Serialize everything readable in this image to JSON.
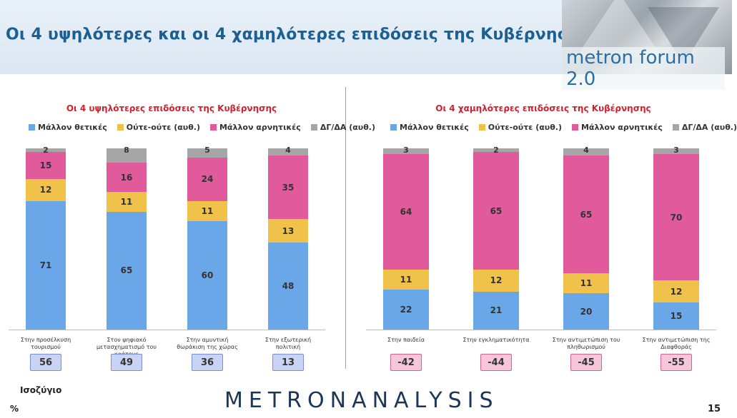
{
  "header": {
    "title": "Οι 4 υψηλότερες και οι 4 χαμηλότερες επιδόσεις της Κυβέρνησης",
    "logo": "metron forum 2.0"
  },
  "colors": {
    "positive": "#6aa7e8",
    "neutral": "#f0c24a",
    "negative": "#e05a9c",
    "dk": "#a6a6a6"
  },
  "footer": {
    "balance_label": "Ισοζύγιο",
    "percent": "%",
    "brand": "METRONANALYSIS",
    "page": "15"
  },
  "chart_data": [
    {
      "type": "bar",
      "stacked": true,
      "title": "Οι 4 υψηλότερες επιδόσεις της Κυβέρνησης",
      "legend": [
        "Μάλλον θετικές",
        "Ούτε-ούτε  (αυθ.)",
        "Μάλλον αρνητικές",
        "ΔΓ/ΔΑ (αυθ.)"
      ],
      "categories": [
        "Στην προσέλκυση τουρισμού",
        "Στον ψηφιακό μετασχηματισμό του κράτους",
        "Στην αμυντική θωράκιση της χώρας",
        "Στην εξωτερική πολιτική"
      ],
      "series": [
        {
          "name": "Μάλλον θετικές",
          "values": [
            71,
            65,
            60,
            48
          ]
        },
        {
          "name": "Ούτε-ούτε  (αυθ.)",
          "values": [
            12,
            11,
            11,
            13
          ]
        },
        {
          "name": "Μάλλον αρνητικές",
          "values": [
            15,
            16,
            24,
            35
          ]
        },
        {
          "name": "ΔΓ/ΔΑ (αυθ.)",
          "values": [
            2,
            8,
            5,
            4
          ]
        }
      ],
      "balance": [
        "56",
        "49",
        "36",
        "13"
      ],
      "ylim": [
        0,
        100
      ]
    },
    {
      "type": "bar",
      "stacked": true,
      "title": "Οι 4 χαμηλότερες επιδόσεις της Κυβέρνησης",
      "legend": [
        "Μάλλον θετικές",
        "Ούτε-ούτε  (αυθ.)",
        "Μάλλον αρνητικές",
        "ΔΓ/ΔΑ (αυθ.)"
      ],
      "categories": [
        "Στην παιδεία",
        "Στην εγκληματικότητα",
        "Στην αντιμετώπιση του πληθωρισμού",
        "Στην αντιμετώπιση της Διαφθοράς"
      ],
      "series": [
        {
          "name": "Μάλλον θετικές",
          "values": [
            22,
            21,
            20,
            15
          ]
        },
        {
          "name": "Ούτε-ούτε  (αυθ.)",
          "values": [
            11,
            12,
            11,
            12
          ]
        },
        {
          "name": "Μάλλον αρνητικές",
          "values": [
            64,
            65,
            65,
            70
          ]
        },
        {
          "name": "ΔΓ/ΔΑ (αυθ.)",
          "values": [
            3,
            2,
            4,
            3
          ]
        }
      ],
      "balance": [
        "-42",
        "-44",
        "-45",
        "-55"
      ],
      "ylim": [
        0,
        100
      ]
    }
  ]
}
